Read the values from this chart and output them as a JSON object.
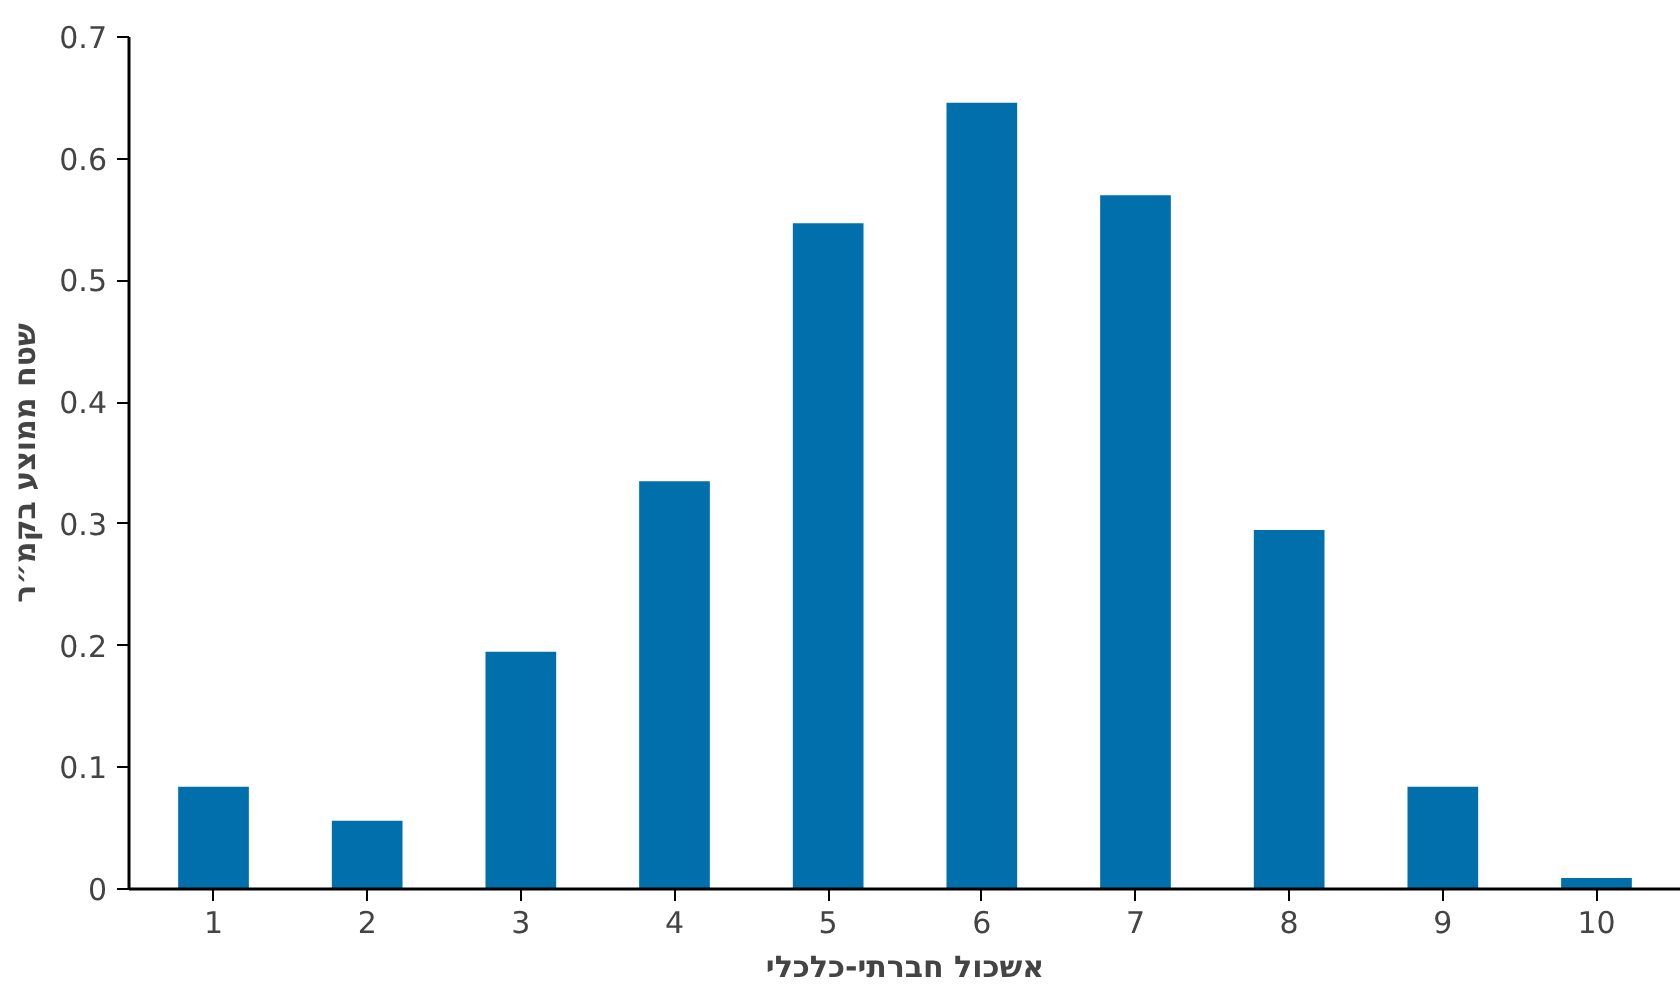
{
  "chart_data": {
    "type": "bar",
    "xlabel": "אשכול חברתי-כלכלי",
    "ylabel": "שטח ממוצע בקמ״ר",
    "categories": [
      "1",
      "2",
      "3",
      "4",
      "5",
      "6",
      "7",
      "8",
      "9",
      "10"
    ],
    "values": [
      0.084,
      0.056,
      0.195,
      0.335,
      0.547,
      0.646,
      0.57,
      0.295,
      0.084,
      0.009
    ],
    "color": "#006fab",
    "ylim": [
      0,
      0.7
    ],
    "yticks": [
      0,
      0.1,
      0.2,
      0.3,
      0.4,
      0.5,
      0.6,
      0.7
    ],
    "grid": false
  }
}
